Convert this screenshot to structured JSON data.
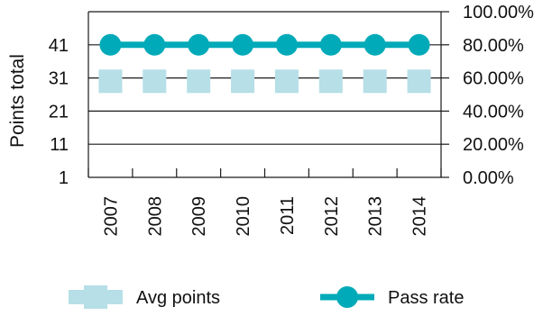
{
  "chart_data": {
    "type": "bar",
    "title": "",
    "xlabel": "",
    "ylabel": "Points total",
    "categories": [
      "2007",
      "2008",
      "2009",
      "2010",
      "2011",
      "2012",
      "2013",
      "2014"
    ],
    "y_left": {
      "range": [
        1,
        51
      ],
      "ticks": [
        "1",
        "11",
        "21",
        "31",
        "41"
      ]
    },
    "y_right": {
      "range": [
        0,
        1
      ],
      "ticks": [
        "0.00%",
        "20.00%",
        "40.00%",
        "60.00%",
        "80.00%",
        "100.00%"
      ]
    },
    "grid": true,
    "legend_position": "bottom",
    "series": [
      {
        "name": "Avg points",
        "type": "square-markers",
        "axis": "left",
        "color": "#b6dfe7",
        "values": [
          30,
          30,
          30,
          30,
          30,
          30,
          30,
          30
        ]
      },
      {
        "name": "Pass rate",
        "type": "line",
        "axis": "right",
        "color": "#00aab8",
        "values": [
          0.8,
          0.8,
          0.8,
          0.8,
          0.8,
          0.8,
          0.8,
          0.8
        ]
      }
    ]
  }
}
